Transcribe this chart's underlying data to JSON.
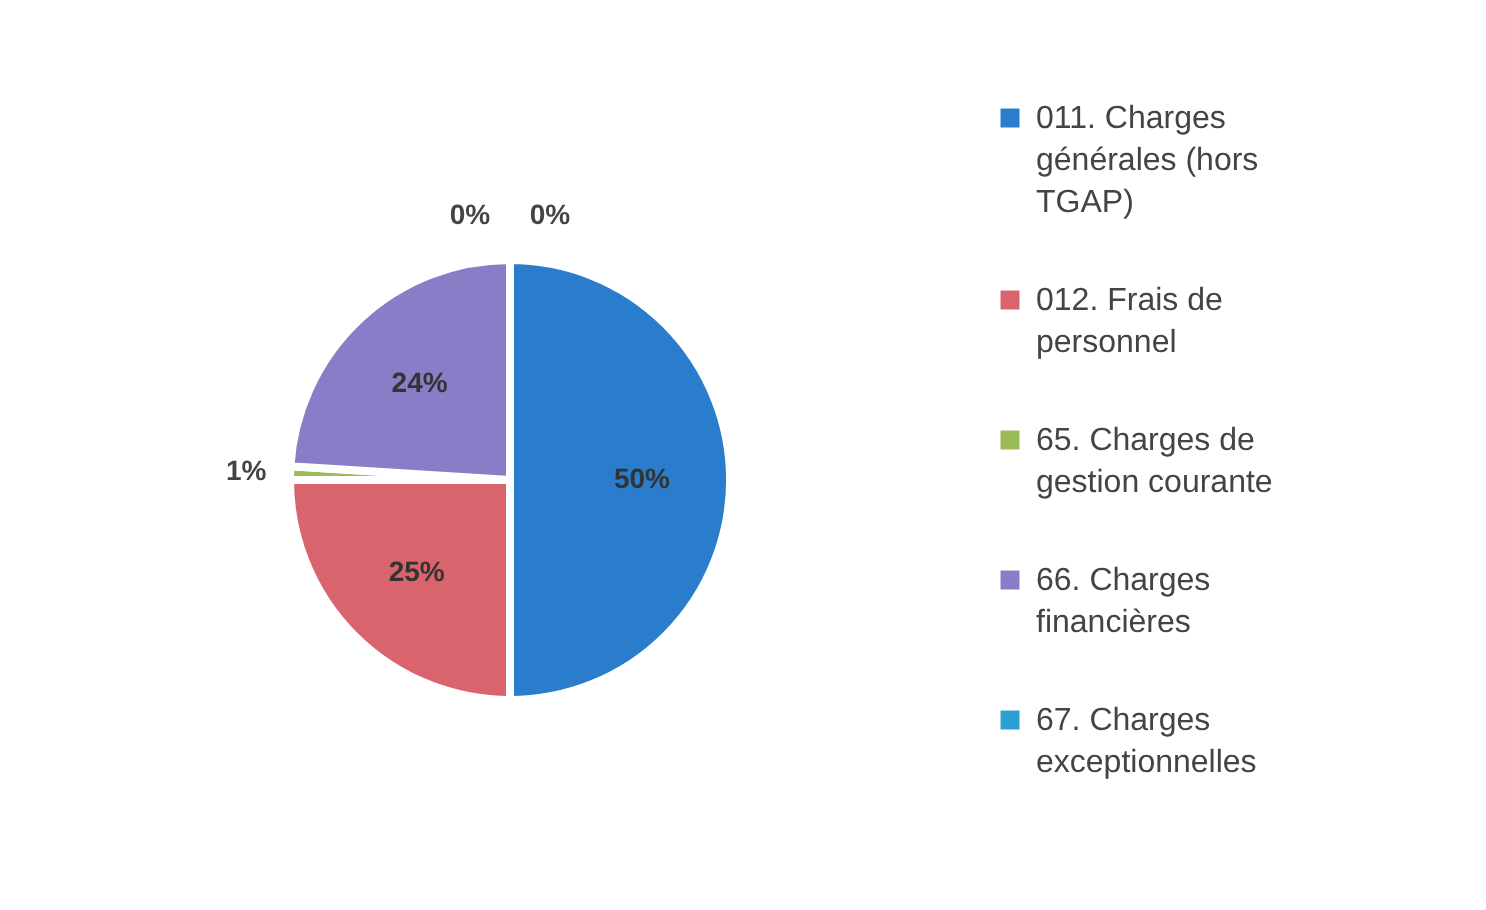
{
  "chart_data": {
    "type": "pie",
    "categories": [
      "011. Charges générales (hors TGAP)",
      "012. Frais de personnel",
      "65. Charges de gestion courante",
      "66. Charges financières",
      "67. Charges exceptionnelles",
      null
    ],
    "values": [
      50,
      25,
      1,
      24,
      0,
      0
    ],
    "colors": [
      "#2a7ccc",
      "#d9646e",
      "#9bbb59",
      "#8a7cc7",
      "#2a9fd0",
      "#f5a36a"
    ],
    "value_labels": [
      "50%",
      "25%",
      "1%",
      "24%",
      "0%",
      "0%"
    ],
    "legend": "right"
  }
}
